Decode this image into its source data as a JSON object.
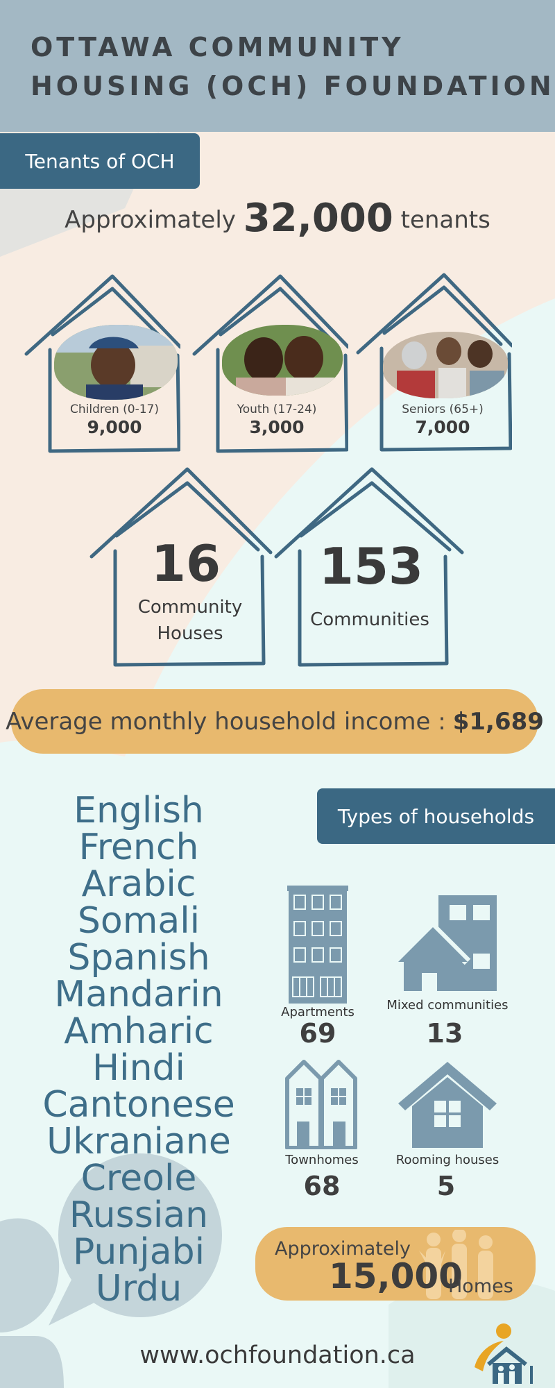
{
  "header": {
    "title_line1": "OTTAWA COMMUNITY",
    "title_line2": "HOUSING (OCH) FOUNDATION"
  },
  "tenants": {
    "tab_label": "Tenants of OCH",
    "prefix": "Approximately",
    "total": "32,000",
    "suffix": "tenants",
    "groups": [
      {
        "label": "Children (0-17)",
        "value": "9,000"
      },
      {
        "label": "Youth (17-24)",
        "value": "3,000"
      },
      {
        "label": "Seniors (65+)",
        "value": "7,000"
      }
    ]
  },
  "stats": {
    "community_houses": {
      "value": "16",
      "label": "Community Houses"
    },
    "communities": {
      "value": "153",
      "label": "Communities"
    }
  },
  "income": {
    "label": "Average monthly household income :",
    "value": "$1,689"
  },
  "languages": [
    "English",
    "French",
    "Arabic",
    "Somali",
    "Spanish",
    "Mandarin",
    "Amharic",
    "Hindi",
    "Cantonese",
    "Ukraniane",
    "Creole",
    "Russian",
    "Punjabi",
    "Urdu"
  ],
  "households": {
    "tab_label": "Types of households",
    "types": [
      {
        "label": "Apartments",
        "count": "69",
        "icon": "apartment-building-icon"
      },
      {
        "label": "Mixed communities",
        "count": "13",
        "icon": "mixed-community-icon"
      },
      {
        "label": "Townhomes",
        "count": "68",
        "icon": "townhome-icon"
      },
      {
        "label": "Rooming houses",
        "count": "5",
        "icon": "rooming-house-icon"
      }
    ]
  },
  "homes": {
    "label": "Approximately",
    "count": "15,000",
    "unit": "Homes"
  },
  "footer": {
    "website": "www.ochfoundation.ca"
  },
  "colors": {
    "header_bg": "#a3b8c4",
    "tab_bg": "#3b6883",
    "accent_gold": "#e8b96e",
    "house_outline": "#3f6882",
    "icon_blue": "#7b9aad",
    "language_text": "#3e6e89",
    "peach_bg": "#f8ece2",
    "mint_bg": "#eaf8f6"
  }
}
